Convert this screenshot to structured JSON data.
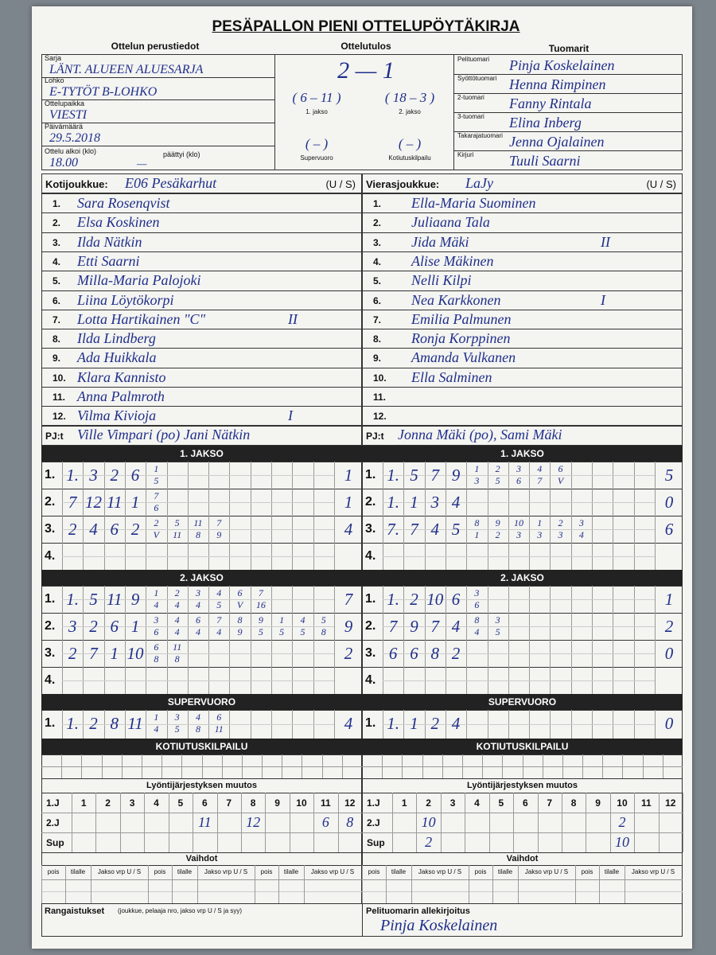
{
  "header": {
    "title": "PESÄPALLON PIENI OTTELUPÖYTÄKIRJA"
  },
  "basic_info": {
    "heading": "Ottelun perustiedot",
    "fields": [
      {
        "label": "Sarja",
        "value": "LÄNT. ALUEEN ALUESARJA"
      },
      {
        "label": "Lohko",
        "value": "E-TYTÖT B-LOHKO"
      },
      {
        "label": "Ottelupaikka",
        "value": "VIESTI"
      },
      {
        "label": "Päivämäärä",
        "value": "29.5.2018"
      }
    ],
    "start_label": "Ottelu alkoi (klo)",
    "start_value": "18.00",
    "end_label": "päättyi (klo)",
    "end_value": "—"
  },
  "result": {
    "heading": "Ottelutulos",
    "score": "2 — 1",
    "periods": [
      {
        "score": "( 6 – 11 )",
        "label": "1. jakso"
      },
      {
        "score": "( 18 – 3 )",
        "label": "2. jakso"
      },
      {
        "score": "(        –        )",
        "label": "Supervuoro"
      },
      {
        "score": "(        –        )",
        "label": "Kotiutuskilpailu"
      }
    ]
  },
  "referees": {
    "heading": "Tuomarit",
    "rows": [
      {
        "role": "Pelituomari",
        "name": "Pinja Koskelainen"
      },
      {
        "role": "Syöttötuomari",
        "name": "Henna Rimpinen"
      },
      {
        "role": "2-tuomari",
        "name": "Fanny Rintala"
      },
      {
        "role": "3-tuomari",
        "name": "Elina Inberg"
      },
      {
        "role": "Takarajatuomari",
        "name": "Jenna Ojalainen"
      },
      {
        "role": "Kirjuri",
        "name": "Tuuli Saarni"
      }
    ]
  },
  "teams": [
    {
      "label": "Kotijoukkue:",
      "name": "E06 Pesäkarhut",
      "side": "(U / S)",
      "players": [
        {
          "no": "1.",
          "name": "Sara Rosenqvist"
        },
        {
          "no": "2.",
          "name": "Elsa Koskinen"
        },
        {
          "no": "3.",
          "name": "Ilda Nätkin"
        },
        {
          "no": "4.",
          "name": "Etti Saarni"
        },
        {
          "no": "5.",
          "name": "Milla-Maria Palojoki"
        },
        {
          "no": "6.",
          "name": "Liina Löytökorpi"
        },
        {
          "no": "7.",
          "name": "Lotta Hartikainen \"C\"",
          "note": "II"
        },
        {
          "no": "8.",
          "name": "Ilda Lindberg"
        },
        {
          "no": "9.",
          "name": "Ada Huikkala"
        },
        {
          "no": "10.",
          "name": "Klara Kannisto"
        },
        {
          "no": "11.",
          "name": "Anna Palmroth"
        },
        {
          "no": "12.",
          "name": "Vilma Kivioja",
          "note": "I"
        }
      ],
      "coaches_label": "PJ:t",
      "coaches": "Ville Vimpari (po) Jani Nätkin",
      "periods": [
        {
          "title": "1. JAKSO",
          "rows": [
            {
              "label": "1.",
              "cells": [
                "1.",
                "3",
                "2",
                "6",
                [
                  "1",
                  "5"
                ]
              ],
              "total": "1"
            },
            {
              "label": "2.",
              "cells": [
                "7",
                "12",
                "11",
                "1",
                [
                  "7",
                  "6"
                ]
              ],
              "total": "1"
            },
            {
              "label": "3.",
              "cells": [
                "2",
                "4",
                "6",
                "2",
                [
                  "2",
                  "V"
                ],
                [
                  "5",
                  "11"
                ],
                [
                  "11",
                  "8"
                ],
                [
                  "7",
                  "9"
                ]
              ],
              "total": "4"
            },
            {
              "label": "4."
            }
          ]
        },
        {
          "title": "2. JAKSO",
          "rows": [
            {
              "label": "1.",
              "cells": [
                "1.",
                "5",
                "11",
                "9",
                [
                  "1",
                  "4"
                ],
                [
                  "2",
                  "4"
                ],
                [
                  "3",
                  "4"
                ],
                [
                  "4",
                  "5"
                ],
                [
                  "6",
                  "V"
                ],
                [
                  "7",
                  "16"
                ]
              ],
              "total": "7"
            },
            {
              "label": "2.",
              "cells": [
                "3",
                "2",
                "6",
                "1",
                [
                  "3",
                  "6"
                ],
                [
                  "4",
                  "4"
                ],
                [
                  "6",
                  "4"
                ],
                [
                  "7",
                  "4"
                ],
                [
                  "8",
                  "9"
                ],
                [
                  "9",
                  "5"
                ],
                [
                  "1",
                  "5"
                ],
                [
                  "4",
                  "5"
                ],
                [
                  "5",
                  "8"
                ]
              ],
              "total": "9"
            },
            {
              "label": "3.",
              "cells": [
                "2",
                "7",
                "1",
                "10",
                [
                  "6",
                  "8"
                ],
                [
                  "11",
                  "8"
                ]
              ],
              "total": "2"
            },
            {
              "label": "4."
            }
          ]
        },
        {
          "title": "SUPERVUORO",
          "rows": [
            {
              "label": "1.",
              "cells": [
                "1.",
                "2",
                "8",
                "11",
                [
                  "1",
                  "4"
                ],
                [
                  "3",
                  "5"
                ],
                [
                  "4",
                  "8"
                ],
                [
                  "6",
                  "11"
                ]
              ],
              "total": "4"
            }
          ]
        }
      ],
      "shootout_title": "KOTIUTUSKILPAILU",
      "order_changes": {
        "title": "Lyöntijärjestyksen muutos",
        "header_label": "1.J",
        "columns": [
          1,
          2,
          3,
          4,
          5,
          6,
          7,
          8,
          9,
          10,
          11,
          12
        ],
        "rows": [
          {
            "label": "2.J",
            "cells": [
              null,
              null,
              null,
              null,
              null,
              "11",
              null,
              "12",
              null,
              null,
              "6",
              "8"
            ]
          },
          {
            "label": "Sup",
            "cells": [
              null,
              null,
              null,
              null,
              null,
              null,
              null,
              null,
              null,
              null,
              null,
              null
            ]
          }
        ]
      },
      "substitutions": {
        "title": "Vaihdot",
        "columns": [
          "pois",
          "tilalle",
          "Jakso vrp U / S",
          "pois",
          "tilalle",
          "Jakso vrp U / S",
          "pois",
          "tilalle",
          "Jakso vrp U / S"
        ]
      }
    },
    {
      "label": "Vierasjoukkue:",
      "name": "LaJy",
      "side": "(U / S)",
      "players": [
        {
          "no": "1.",
          "name": "Ella-Maria Suominen"
        },
        {
          "no": "2.",
          "name": "Juliaana Tala"
        },
        {
          "no": "3.",
          "name": "Jida Mäki",
          "note": "II"
        },
        {
          "no": "4.",
          "name": "Alise Mäkinen"
        },
        {
          "no": "5.",
          "name": "Nelli Kilpi"
        },
        {
          "no": "6.",
          "name": "Nea Karkkonen",
          "note": "I"
        },
        {
          "no": "7.",
          "name": "Emilia Palmunen"
        },
        {
          "no": "8.",
          "name": "Ronja Korppinen"
        },
        {
          "no": "9.",
          "name": "Amanda Vulkanen"
        },
        {
          "no": "10.",
          "name": "Ella Salminen"
        },
        {
          "no": "11."
        },
        {
          "no": "12."
        }
      ],
      "coaches_label": "PJ:t",
      "coaches": "Jonna Mäki (po), Sami Mäki",
      "periods": [
        {
          "title": "1. JAKSO",
          "rows": [
            {
              "label": "1.",
              "cells": [
                "1.",
                "5",
                "7",
                "9",
                [
                  "1",
                  "3"
                ],
                [
                  "2",
                  "5"
                ],
                [
                  "3",
                  "6"
                ],
                [
                  "4",
                  "7"
                ],
                [
                  "6",
                  "V"
                ]
              ],
              "total": "5"
            },
            {
              "label": "2.",
              "cells": [
                "1.",
                "1",
                "3",
                "4"
              ],
              "total": "0"
            },
            {
              "label": "3.",
              "cells": [
                "7.",
                "7",
                "4",
                "5",
                [
                  "8",
                  "1"
                ],
                [
                  "9",
                  "2"
                ],
                [
                  "10",
                  "3"
                ],
                [
                  "1",
                  "3"
                ],
                [
                  "2",
                  "3"
                ],
                [
                  "3",
                  "4"
                ]
              ],
              "total": "6"
            },
            {
              "label": "4."
            }
          ]
        },
        {
          "title": "2. JAKSO",
          "rows": [
            {
              "label": "1.",
              "cells": [
                "1.",
                "2",
                "10",
                "6",
                [
                  "3",
                  "6"
                ]
              ],
              "total": "1"
            },
            {
              "label": "2.",
              "cells": [
                "7",
                "9",
                "7",
                "4",
                [
                  "8",
                  "4"
                ],
                [
                  "3",
                  "5"
                ]
              ],
              "total": "2"
            },
            {
              "label": "3.",
              "cells": [
                "6",
                "6",
                "8",
                "2"
              ],
              "total": "0"
            },
            {
              "label": "4."
            }
          ]
        },
        {
          "title": "SUPERVUORO",
          "rows": [
            {
              "label": "1.",
              "cells": [
                "1.",
                "1",
                "2",
                "4"
              ],
              "total": "0"
            }
          ]
        }
      ],
      "shootout_title": "KOTIUTUSKILPAILU",
      "order_changes": {
        "title": "Lyöntijärjestyksen muutos",
        "header_label": "1.J",
        "columns": [
          1,
          2,
          3,
          4,
          5,
          6,
          7,
          8,
          9,
          10,
          11,
          12
        ],
        "rows": [
          {
            "label": "2.J",
            "cells": [
              null,
              "10",
              null,
              null,
              null,
              null,
              null,
              null,
              null,
              "2",
              null,
              null
            ]
          },
          {
            "label": "Sup",
            "cells": [
              null,
              "2",
              null,
              null,
              null,
              null,
              null,
              null,
              null,
              "10",
              null,
              null
            ]
          }
        ]
      },
      "substitutions": {
        "title": "Vaihdot",
        "columns": [
          "pois",
          "tilalle",
          "Jakso vrp U / S",
          "pois",
          "tilalle",
          "Jakso vrp U / S",
          "pois",
          "tilalle",
          "Jakso vrp U / S"
        ]
      }
    }
  ],
  "penalties": {
    "label": "Rangaistukset",
    "hint": "(joukkue, pelaaja nro, jakso vrp U / S ja syy)"
  },
  "signature": {
    "label": "Pelituomarin allekirjoitus",
    "value": "Pinja Koskelainen"
  }
}
